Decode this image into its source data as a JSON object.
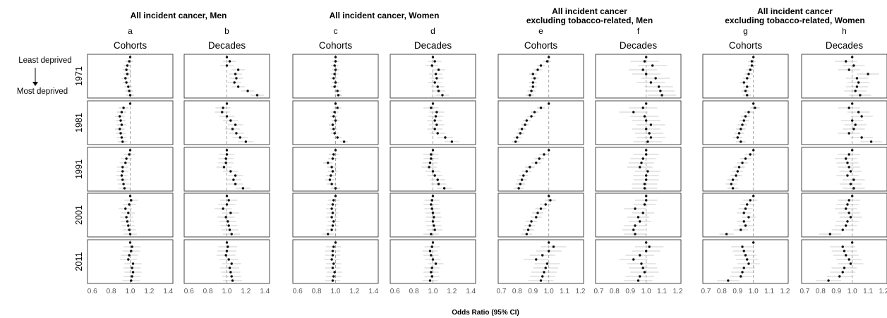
{
  "figure": {
    "x_label": "Odds Ratio (95% CI)",
    "side_labels": {
      "top": "Least deprived",
      "bottom": "Most deprived"
    },
    "rows": [
      "1971",
      "1981",
      "1991",
      "2001",
      "2011"
    ],
    "groups": [
      {
        "title_lines": [
          "All incident cancer, Men"
        ]
      },
      {
        "title_lines": [
          "All incident cancer, Women"
        ]
      },
      {
        "title_lines": [
          "All incident cancer",
          "excluding tobacco-related, Men"
        ]
      },
      {
        "title_lines": [
          "All incident cancer",
          "excluding tobacco-related, Women"
        ]
      }
    ],
    "columns": [
      {
        "letter": "a",
        "subtitle": "Cohorts"
      },
      {
        "letter": "b",
        "subtitle": "Decades"
      },
      {
        "letter": "c",
        "subtitle": "Cohorts"
      },
      {
        "letter": "d",
        "subtitle": "Decades"
      },
      {
        "letter": "e",
        "subtitle": "Cohorts"
      },
      {
        "letter": "f",
        "subtitle": "Decades"
      },
      {
        "letter": "g",
        "subtitle": "Cohorts"
      },
      {
        "letter": "h",
        "subtitle": "Decades"
      }
    ]
  },
  "chart_data": {
    "type": "scatter",
    "x_label": "Odds Ratio (95% CI)",
    "reference_line": 1.0,
    "categories_per_panel": 10,
    "colors": {
      "point": "#111111",
      "ci": "#9a9a9a",
      "ref_line": "#9a9a9a",
      "frame": "#333333"
    },
    "panels": [
      {
        "column": "a",
        "xlim": [
          0.55,
          1.45
        ],
        "ticks": [
          0.6,
          0.8,
          1.0,
          1.2,
          1.4
        ],
        "tick_labels": [
          "0.6",
          "0.8",
          "1.0",
          "1.2",
          "1.4"
        ],
        "rows": [
          {
            "or": [
              1.0,
              0.99,
              0.97,
              0.96,
              0.97,
              0.95,
              0.96,
              0.98,
              0.99,
              1.0
            ],
            "hw": 0.04
          },
          {
            "or": [
              1.0,
              0.93,
              0.91,
              0.89,
              0.9,
              0.91,
              0.89,
              0.9,
              0.91,
              0.92
            ],
            "hw": 0.05
          },
          {
            "or": [
              1.0,
              0.99,
              0.96,
              0.95,
              0.92,
              0.92,
              0.91,
              0.92,
              0.93,
              0.94
            ],
            "hw": 0.06
          },
          {
            "or": [
              1.0,
              1.01,
              0.99,
              0.95,
              0.98,
              0.96,
              0.97,
              0.98,
              0.99,
              1.0
            ],
            "hw": 0.07
          },
          {
            "or": [
              1.0,
              1.02,
              1.01,
              0.99,
              0.98,
              1.03,
              1.02,
              1.03,
              1.02,
              1.01
            ],
            "hw": 0.09
          }
        ]
      },
      {
        "column": "b",
        "xlim": [
          0.55,
          1.45
        ],
        "ticks": [
          0.6,
          0.8,
          1.0,
          1.2,
          1.4
        ],
        "tick_labels": [
          "0.6",
          "0.8",
          "1.0",
          "1.2",
          "1.4"
        ],
        "rows": [
          {
            "or": [
              1.0,
              1.03,
              1.0,
              1.12,
              1.09,
              1.1,
              1.08,
              1.12,
              1.22,
              1.32
            ],
            "hw": 0.07
          },
          {
            "or": [
              1.0,
              0.96,
              0.95,
              1.0,
              1.04,
              1.09,
              1.06,
              1.1,
              1.14,
              1.2
            ],
            "hw": 0.08
          },
          {
            "or": [
              1.0,
              1.0,
              0.99,
              0.99,
              0.97,
              1.04,
              1.09,
              1.07,
              1.09,
              1.17
            ],
            "hw": 0.08
          },
          {
            "or": [
              1.0,
              1.02,
              1.0,
              0.96,
              1.04,
              0.99,
              1.01,
              1.02,
              1.03,
              1.05
            ],
            "hw": 0.09
          },
          {
            "or": [
              1.0,
              1.01,
              1.0,
              0.99,
              1.02,
              1.05,
              1.03,
              1.04,
              1.05,
              1.06
            ],
            "hw": 0.1
          }
        ]
      },
      {
        "column": "c",
        "xlim": [
          0.55,
          1.45
        ],
        "ticks": [
          0.6,
          0.8,
          1.0,
          1.2,
          1.4
        ],
        "tick_labels": [
          "0.6",
          "0.8",
          "1.0",
          "1.2",
          "1.4"
        ],
        "rows": [
          {
            "or": [
              1.0,
              1.0,
              0.99,
              1.0,
              0.99,
              0.98,
              1.0,
              0.99,
              1.02,
              1.03
            ],
            "hw": 0.04
          },
          {
            "or": [
              1.0,
              1.02,
              0.99,
              0.98,
              1.0,
              0.97,
              0.98,
              0.99,
              1.02,
              1.09
            ],
            "hw": 0.04
          },
          {
            "or": [
              1.0,
              0.98,
              0.97,
              0.92,
              0.96,
              0.97,
              0.95,
              0.94,
              0.96,
              1.0
            ],
            "hw": 0.05
          },
          {
            "or": [
              1.0,
              0.98,
              0.97,
              0.96,
              0.97,
              0.96,
              0.98,
              0.97,
              0.96,
              0.92
            ],
            "hw": 0.06
          },
          {
            "or": [
              1.0,
              0.98,
              0.97,
              0.97,
              0.96,
              0.98,
              0.97,
              0.99,
              0.98,
              0.97
            ],
            "hw": 0.08
          }
        ]
      },
      {
        "column": "d",
        "xlim": [
          0.55,
          1.45
        ],
        "ticks": [
          0.6,
          0.8,
          1.0,
          1.2,
          1.4
        ],
        "tick_labels": [
          "0.6",
          "0.8",
          "1.0",
          "1.2",
          "1.4"
        ],
        "rows": [
          {
            "or": [
              1.0,
              1.02,
              0.99,
              1.06,
              1.03,
              1.04,
              1.02,
              1.05,
              1.06,
              1.1
            ],
            "hw": 0.07
          },
          {
            "or": [
              1.0,
              0.98,
              1.04,
              1.03,
              1.02,
              1.04,
              1.02,
              1.05,
              1.13,
              1.2
            ],
            "hw": 0.08
          },
          {
            "or": [
              1.0,
              0.98,
              0.98,
              0.97,
              0.96,
              1.0,
              1.02,
              1.05,
              1.06,
              1.12
            ],
            "hw": 0.08
          },
          {
            "or": [
              1.0,
              0.99,
              0.98,
              0.99,
              1.0,
              1.01,
              1.0,
              1.01,
              1.02,
              0.98
            ],
            "hw": 0.08
          },
          {
            "or": [
              1.0,
              0.99,
              0.97,
              0.98,
              1.0,
              1.03,
              0.99,
              0.98,
              0.99,
              0.97
            ],
            "hw": 0.08
          }
        ]
      },
      {
        "column": "e",
        "xlim": [
          0.68,
          1.22
        ],
        "ticks": [
          0.7,
          0.8,
          0.9,
          1.0,
          1.1,
          1.2
        ],
        "tick_labels": [
          "0.7",
          "0.8",
          "0.9",
          "1.0",
          "1.1",
          "1.2"
        ],
        "rows": [
          {
            "or": [
              1.0,
              0.99,
              0.95,
              0.93,
              0.9,
              0.91,
              0.9,
              0.9,
              0.89,
              0.88
            ],
            "hw": 0.025
          },
          {
            "or": [
              1.0,
              0.95,
              0.91,
              0.89,
              0.86,
              0.85,
              0.83,
              0.82,
              0.8,
              0.79
            ],
            "hw": 0.025
          },
          {
            "or": [
              1.0,
              0.97,
              0.94,
              0.92,
              0.88,
              0.86,
              0.84,
              0.83,
              0.82,
              0.81
            ],
            "hw": 0.03
          },
          {
            "or": [
              1.0,
              1.01,
              0.98,
              0.95,
              0.93,
              0.92,
              0.89,
              0.88,
              0.87,
              0.86
            ],
            "hw": 0.035
          },
          {
            "or": [
              1.0,
              1.03,
              1.0,
              0.96,
              0.92,
              0.99,
              0.98,
              0.97,
              0.96,
              0.95
            ],
            "hw": 0.08
          }
        ]
      },
      {
        "column": "f",
        "xlim": [
          0.68,
          1.22
        ],
        "ticks": [
          0.7,
          0.8,
          0.9,
          1.0,
          1.1,
          1.2
        ],
        "tick_labels": [
          "0.7",
          "0.8",
          "0.9",
          "1.0",
          "1.1",
          "1.2"
        ],
        "rows": [
          {
            "or": [
              1.0,
              0.99,
              1.04,
              0.98,
              1.0,
              1.06,
              1.03,
              1.08,
              1.09,
              1.1
            ],
            "hw": 0.09
          },
          {
            "or": [
              1.0,
              0.98,
              0.92,
              0.99,
              1.0,
              1.03,
              1.0,
              1.02,
              1.03,
              1.01
            ],
            "hw": 0.09
          },
          {
            "or": [
              1.0,
              1.0,
              0.98,
              0.97,
              0.96,
              1.01,
              1.0,
              1.0,
              0.99,
              0.99
            ],
            "hw": 0.08
          },
          {
            "or": [
              1.0,
              1.0,
              0.99,
              0.93,
              0.98,
              0.95,
              0.96,
              0.93,
              0.92,
              0.93
            ],
            "hw": 0.07
          },
          {
            "or": [
              1.0,
              1.02,
              1.0,
              0.96,
              0.92,
              0.97,
              0.98,
              0.99,
              0.96,
              0.95
            ],
            "hw": 0.09
          }
        ]
      },
      {
        "column": "g",
        "xlim": [
          0.68,
          1.22
        ],
        "ticks": [
          0.7,
          0.8,
          0.9,
          1.0,
          1.1,
          1.2
        ],
        "tick_labels": [
          "0.7",
          "0.8",
          "0.9",
          "1.0",
          "1.1",
          "1.2"
        ],
        "rows": [
          {
            "or": [
              1.0,
              0.99,
              0.99,
              0.98,
              0.97,
              0.96,
              0.94,
              0.96,
              0.95,
              0.96
            ],
            "hw": 0.025
          },
          {
            "or": [
              1.0,
              1.01,
              0.97,
              0.95,
              0.94,
              0.93,
              0.92,
              0.91,
              0.9,
              0.92
            ],
            "hw": 0.03
          },
          {
            "or": [
              1.0,
              0.98,
              0.95,
              0.93,
              0.91,
              0.9,
              0.89,
              0.87,
              0.86,
              0.87
            ],
            "hw": 0.035
          },
          {
            "or": [
              1.0,
              0.98,
              0.96,
              0.95,
              0.94,
              0.97,
              0.94,
              0.95,
              0.92,
              0.83
            ],
            "hw": 0.045
          },
          {
            "or": [
              1.0,
              0.93,
              0.94,
              0.95,
              0.96,
              0.97,
              0.94,
              0.93,
              0.92,
              0.84
            ],
            "hw": 0.07
          }
        ]
      },
      {
        "column": "h",
        "xlim": [
          0.68,
          1.22
        ],
        "ticks": [
          0.7,
          0.8,
          0.9,
          1.0,
          1.1,
          1.2
        ],
        "tick_labels": [
          "0.7",
          "0.8",
          "0.9",
          "1.0",
          "1.1",
          "1.2"
        ],
        "rows": [
          {
            "or": [
              1.0,
              0.96,
              1.01,
              0.98,
              1.1,
              1.03,
              1.04,
              1.03,
              1.02,
              1.05
            ],
            "hw": 0.07
          },
          {
            "or": [
              1.0,
              0.98,
              1.04,
              1.06,
              1.0,
              1.02,
              1.01,
              0.98,
              1.06,
              1.12
            ],
            "hw": 0.07
          },
          {
            "or": [
              1.0,
              0.98,
              0.96,
              0.97,
              0.98,
              0.99,
              0.97,
              1.01,
              0.99,
              1.01
            ],
            "hw": 0.07
          },
          {
            "or": [
              1.0,
              0.98,
              0.97,
              0.96,
              0.98,
              0.99,
              0.97,
              0.96,
              0.94,
              0.86
            ],
            "hw": 0.07
          },
          {
            "or": [
              1.0,
              0.94,
              0.95,
              0.96,
              0.98,
              0.99,
              0.95,
              0.94,
              0.92,
              0.85
            ],
            "hw": 0.08
          }
        ]
      }
    ]
  }
}
